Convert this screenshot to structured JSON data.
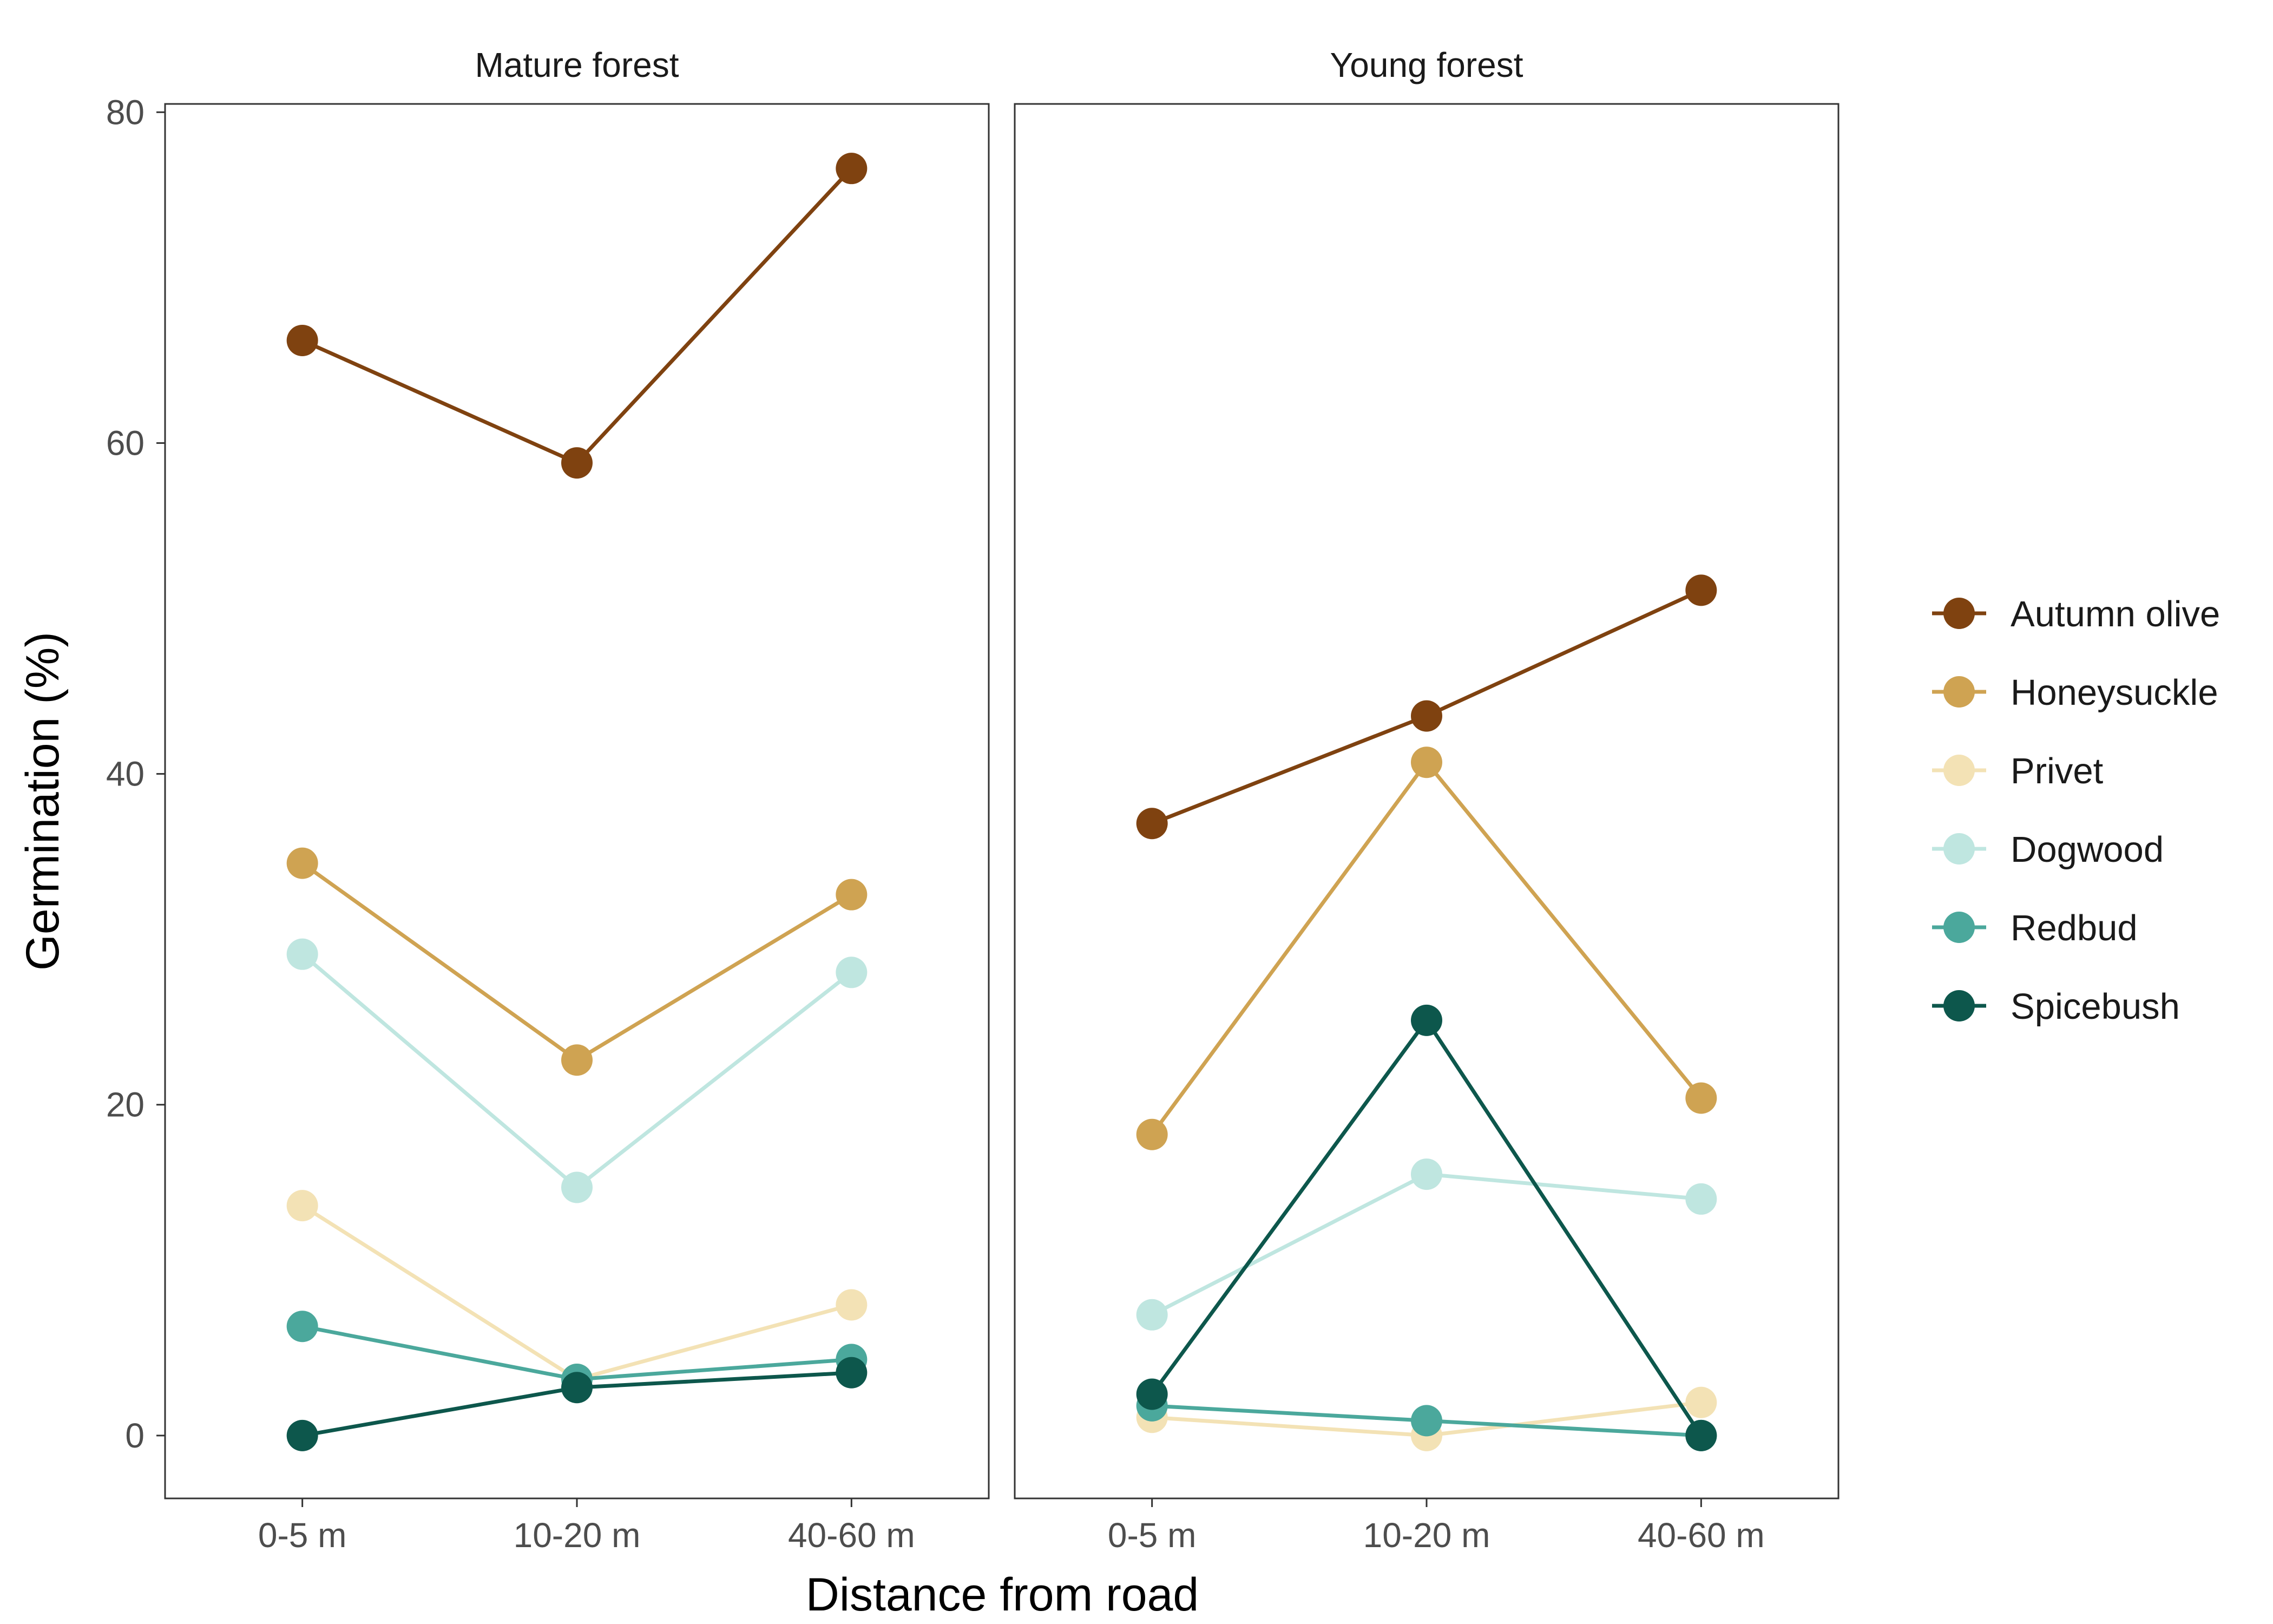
{
  "chart_data": {
    "type": "line",
    "xlabel": "Distance from road",
    "ylabel": "Germination (%)",
    "categories": [
      "0-5 m",
      "10-20 m",
      "40-60 m"
    ],
    "ylim": [
      -3.8,
      80.5
    ],
    "yticks": [
      0,
      20,
      40,
      60,
      80
    ],
    "ytick_labels": [
      "0",
      "20",
      "40",
      "60",
      "80"
    ],
    "grid": false,
    "legend_position": "right",
    "series_order": [
      "Autumn olive",
      "Honeysuckle",
      "Privet",
      "Dogwood",
      "Redbud",
      "Spicebush"
    ],
    "colors": {
      "Autumn olive": "#7f4210",
      "Honeysuckle": "#cfa352",
      "Privet": "#f3e2b5",
      "Dogwood": "#bfe6e0",
      "Redbud": "#4ba89c",
      "Spicebush": "#0d574c"
    },
    "panels": [
      {
        "title": "Mature forest",
        "series": [
          {
            "name": "Autumn olive",
            "values": [
              66.2,
              58.8,
              76.6
            ]
          },
          {
            "name": "Honeysuckle",
            "values": [
              34.6,
              22.7,
              32.7
            ]
          },
          {
            "name": "Privet",
            "values": [
              13.9,
              3.4,
              7.9
            ]
          },
          {
            "name": "Dogwood",
            "values": [
              29.1,
              15.0,
              28.0
            ]
          },
          {
            "name": "Redbud",
            "values": [
              6.6,
              3.4,
              4.6
            ]
          },
          {
            "name": "Spicebush",
            "values": [
              0.0,
              2.9,
              3.8
            ]
          }
        ]
      },
      {
        "title": "Young forest",
        "series": [
          {
            "name": "Autumn olive",
            "values": [
              37.0,
              43.5,
              51.1
            ]
          },
          {
            "name": "Honeysuckle",
            "values": [
              18.2,
              40.7,
              20.4
            ]
          },
          {
            "name": "Privet",
            "values": [
              1.1,
              0.0,
              2.0
            ]
          },
          {
            "name": "Dogwood",
            "values": [
              7.3,
              15.8,
              14.3
            ]
          },
          {
            "name": "Redbud",
            "values": [
              1.8,
              0.9,
              0.0
            ]
          },
          {
            "name": "Spicebush",
            "values": [
              2.5,
              25.1,
              0.0
            ]
          }
        ]
      }
    ]
  }
}
